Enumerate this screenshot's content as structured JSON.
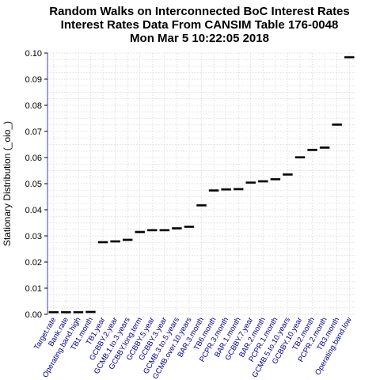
{
  "chart_data": {
    "type": "box",
    "title_lines": [
      "Random Walks on Interconnected BoC Interest Rates",
      "Interest Rates Data From CANSIM Table 176-0048",
      "Mon Mar  5 10:22:05 2018"
    ],
    "xlabel": "",
    "ylabel": "Stationary Distribution (_oio_)",
    "ylim": [
      0,
      0.1
    ],
    "yticks": [
      "0.00",
      "0.01",
      "0.02",
      "0.03",
      "0.04",
      "0.05",
      "0.06",
      "0.07",
      "0.08",
      "0.09",
      "0.10"
    ],
    "grid": true,
    "categories": [
      "Target.rate",
      "Bank.rate",
      "Operating.band.high",
      "TB1.month",
      "TB1.year",
      "GCBBY.2.year",
      "GCMB.1.to.3.years",
      "GCBBY.long.term",
      "GCBBY.5.year",
      "GCBBY.3.year",
      "GCMB.3.to.5.years",
      "GCMB.over.10.years",
      "BAR.3.month",
      "TB6.month",
      "PCPR.3.month",
      "BAR.1.month",
      "GCBBY.7.year",
      "BAR.2.month",
      "PCPR.1.month",
      "GCMB.5.to.10.years",
      "GCBBY.10.year",
      "TB2.month",
      "PCPR.2.month",
      "TB3.month",
      "Operating.band.low"
    ],
    "values": [
      0.0008,
      0.0008,
      0.0008,
      0.0009,
      0.0276,
      0.0279,
      0.0285,
      0.0315,
      0.0322,
      0.0322,
      0.0329,
      0.0335,
      0.0417,
      0.0474,
      0.0478,
      0.0479,
      0.0504,
      0.0509,
      0.0517,
      0.0535,
      0.0601,
      0.0629,
      0.0638,
      0.0726,
      0.0984
    ],
    "colors": {
      "tick_label": "#00008b",
      "axis": "#4040c0",
      "grid": "#d3d3d3",
      "marker": "#000000"
    }
  }
}
